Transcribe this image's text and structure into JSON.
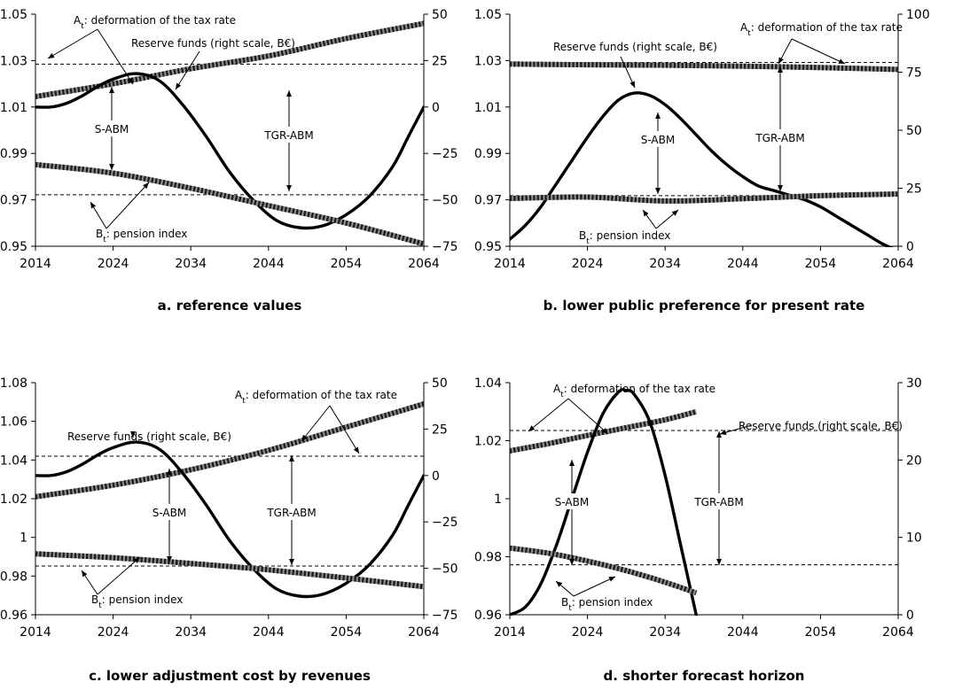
{
  "chart_data": [
    {
      "type": "line",
      "caption": "a. reference values",
      "xlim": [
        2014,
        2064
      ],
      "x_ticks": [
        2014,
        2024,
        2034,
        2044,
        2054,
        2064
      ],
      "ylim_left": [
        0.95,
        1.05
      ],
      "y_ticks_left": [
        0.95,
        0.97,
        0.99,
        1.01,
        1.03,
        1.05
      ],
      "y_tick_labels_left": [
        "0.95",
        "0.97",
        "0.99",
        "1.01",
        "1.03",
        "1.05"
      ],
      "ylim_right": [
        -75,
        50
      ],
      "y_ticks_right": [
        -75,
        -50,
        -25,
        0,
        25,
        50
      ],
      "y_tick_labels_right": [
        "−75",
        "−50",
        "−25",
        "0",
        "25",
        "50"
      ],
      "hlines_left": [
        1.0285,
        0.9722
      ],
      "series": [
        {
          "name": "Aₜ: deformation of the tax rate",
          "axis": "left",
          "style": "dotted-thick",
          "x": [
            2014,
            2024,
            2034,
            2044,
            2054,
            2064
          ],
          "y": [
            1.0145,
            1.02,
            1.0265,
            1.032,
            1.0395,
            1.046
          ]
        },
        {
          "name": "Reserve funds (right scale, B€)",
          "axis": "right",
          "style": "solid-thick",
          "x": [
            2014,
            2016,
            2018,
            2020,
            2022,
            2024,
            2027,
            2030,
            2033,
            2036,
            2039,
            2042,
            2045,
            2048,
            2051,
            2054,
            2057,
            2060,
            2062,
            2064
          ],
          "y": [
            0,
            0,
            2,
            6,
            11,
            15,
            18,
            14,
            1,
            -16,
            -35,
            -50,
            -61,
            -65,
            -64,
            -58,
            -48,
            -32,
            -16,
            0
          ]
        },
        {
          "name": "Bₜ: pension index",
          "axis": "left",
          "style": "dotted-thick",
          "x": [
            2014,
            2024,
            2034,
            2044,
            2054,
            2064
          ],
          "y": [
            0.9852,
            0.9815,
            0.975,
            0.9675,
            0.96,
            0.951
          ]
        }
      ],
      "annotations": [
        "S-ABM",
        "TGR-ABM"
      ]
    },
    {
      "type": "line",
      "caption": "b. lower public preference for present rate",
      "xlim": [
        2014,
        2064
      ],
      "x_ticks": [
        2014,
        2024,
        2034,
        2044,
        2054,
        2064
      ],
      "ylim_left": [
        0.95,
        1.05
      ],
      "y_ticks_left": [
        0.95,
        0.97,
        0.99,
        1.01,
        1.03,
        1.05
      ],
      "y_tick_labels_left": [
        "0.95",
        "0.97",
        "0.99",
        "1.01",
        "1.03",
        "1.05"
      ],
      "ylim_right": [
        0,
        100
      ],
      "y_ticks_right": [
        0,
        25,
        50,
        75,
        100
      ],
      "y_tick_labels_right": [
        "0",
        "25",
        "50",
        "75",
        "100"
      ],
      "hlines_left": [
        1.0292,
        0.9718
      ],
      "series": [
        {
          "name": "Aₜ: deformation of the tax rate",
          "axis": "left",
          "style": "dotted-thick",
          "x": [
            2014,
            2024,
            2034,
            2044,
            2054,
            2064
          ],
          "y": [
            1.0285,
            1.0282,
            1.028,
            1.0276,
            1.027,
            1.0262
          ]
        },
        {
          "name": "Reserve funds (right scale, B€)",
          "axis": "right",
          "style": "solid-thick",
          "x": [
            2014,
            2016,
            2018,
            2020,
            2022,
            2024,
            2026,
            2028,
            2030,
            2032,
            2034,
            2036,
            2038,
            2040,
            2042,
            2044,
            2046,
            2048,
            2050,
            2052,
            2054,
            2056,
            2058,
            2060,
            2062,
            2064
          ],
          "y": [
            3,
            9,
            17,
            27,
            37,
            47,
            56,
            63,
            66,
            65,
            61,
            55,
            48,
            41,
            35,
            30,
            26,
            24,
            22,
            20,
            17,
            13,
            9,
            5,
            1,
            -2
          ]
        },
        {
          "name": "Bₜ: pension index",
          "axis": "left",
          "style": "dotted-thick",
          "x": [
            2014,
            2024,
            2034,
            2044,
            2054,
            2064
          ],
          "y": [
            0.9706,
            0.9712,
            0.9695,
            0.9705,
            0.9718,
            0.9725
          ]
        }
      ],
      "annotations": [
        "S-ABM",
        "TGR-ABM"
      ]
    },
    {
      "type": "line",
      "caption": "c. lower adjustment cost by revenues",
      "xlim": [
        2014,
        2064
      ],
      "x_ticks": [
        2014,
        2024,
        2034,
        2044,
        2054,
        2064
      ],
      "ylim_left": [
        0.96,
        1.08
      ],
      "y_ticks_left": [
        0.96,
        0.98,
        1.0,
        1.02,
        1.04,
        1.06,
        1.08
      ],
      "y_tick_labels_left": [
        "0.96",
        "0.98",
        "1",
        "1.02",
        "1.04",
        "1.06",
        "1.08"
      ],
      "ylim_right": [
        -75,
        50
      ],
      "y_ticks_right": [
        -75,
        -50,
        -25,
        0,
        25,
        50
      ],
      "y_tick_labels_right": [
        "−75",
        "−50",
        "−25",
        "0",
        "25",
        "50"
      ],
      "hlines_left": [
        1.042,
        0.9852
      ],
      "series": [
        {
          "name": "Aₜ: deformation of the tax rate",
          "axis": "left",
          "style": "dotted-thick",
          "x": [
            2014,
            2024,
            2034,
            2044,
            2054,
            2064
          ],
          "y": [
            1.021,
            1.027,
            1.035,
            1.045,
            1.057,
            1.069
          ]
        },
        {
          "name": "Reserve funds (right scale, B€)",
          "axis": "right",
          "style": "solid-thick",
          "x": [
            2014,
            2016,
            2018,
            2020,
            2022,
            2024,
            2027,
            2030,
            2033,
            2036,
            2039,
            2042,
            2045,
            2048,
            2051,
            2054,
            2057,
            2060,
            2062,
            2064
          ],
          "y": [
            0,
            0,
            2,
            6,
            11,
            15,
            18,
            14,
            1,
            -16,
            -35,
            -50,
            -61,
            -65,
            -64,
            -58,
            -48,
            -32,
            -16,
            0
          ]
        },
        {
          "name": "Bₜ: pension index",
          "axis": "left",
          "style": "dotted-thick",
          "x": [
            2014,
            2024,
            2034,
            2044,
            2054,
            2064
          ],
          "y": [
            0.9915,
            0.9895,
            0.9865,
            0.9832,
            0.979,
            0.9745
          ]
        }
      ],
      "annotations": [
        "S-ABM",
        "TGR-ABM"
      ]
    },
    {
      "type": "line",
      "caption": "d. shorter forecast horizon",
      "xlim": [
        2014,
        2064
      ],
      "x_ticks": [
        2014,
        2024,
        2034,
        2044,
        2054,
        2064
      ],
      "ylim_left": [
        0.96,
        1.04
      ],
      "y_ticks_left": [
        0.96,
        0.98,
        1.0,
        1.02,
        1.04
      ],
      "y_tick_labels_left": [
        "0.96",
        "0.98",
        "1",
        "1.02",
        "1.04"
      ],
      "ylim_right": [
        0,
        30
      ],
      "y_ticks_right": [
        0,
        10,
        20,
        30
      ],
      "y_tick_labels_right": [
        "0",
        "10",
        "20",
        "30"
      ],
      "hlines_left": [
        1.0235,
        0.9772
      ],
      "series": [
        {
          "name": "Aₜ: deformation of the tax rate",
          "axis": "left",
          "style": "dotted-thick",
          "x": [
            2014,
            2019,
            2024,
            2029,
            2034,
            2038
          ],
          "y": [
            1.0165,
            1.019,
            1.0218,
            1.0245,
            1.0272,
            1.03
          ]
        },
        {
          "name": "Reserve funds (right scale, B€)",
          "axis": "right",
          "style": "solid-thick",
          "x": [
            2014,
            2016,
            2018,
            2020,
            2022,
            2024,
            2026,
            2028,
            2029,
            2030,
            2032,
            2034,
            2036,
            2038
          ],
          "y": [
            0,
            1,
            4,
            9,
            15,
            21,
            26,
            28.8,
            29,
            28.5,
            25,
            18,
            9,
            0
          ]
        },
        {
          "name": "Bₜ: pension index",
          "axis": "left",
          "style": "dotted-thick",
          "x": [
            2014,
            2019,
            2024,
            2029,
            2034,
            2038
          ],
          "y": [
            0.983,
            0.9812,
            0.9785,
            0.9752,
            0.9712,
            0.9675
          ]
        }
      ],
      "annotations": [
        "S-ABM",
        "TGR-ABM"
      ]
    }
  ]
}
